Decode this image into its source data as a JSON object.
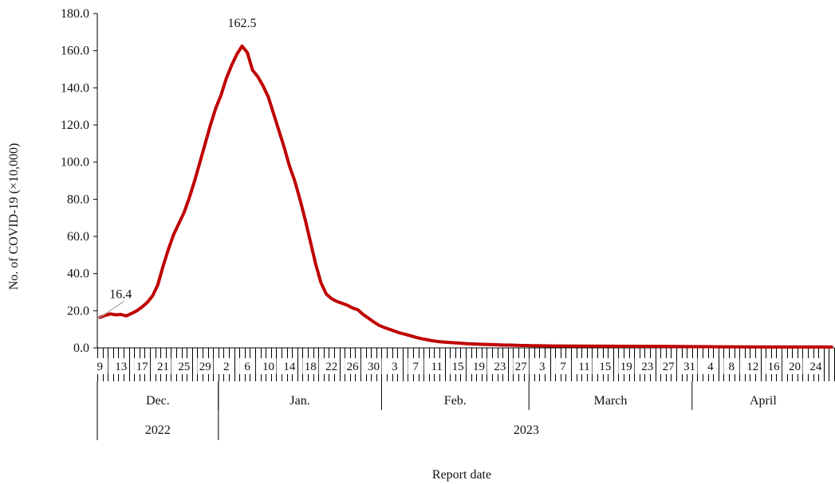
{
  "chart_data": {
    "type": "line",
    "title": "",
    "xlabel": "Report date",
    "ylabel": "No. of COVID-19 (×10,000)",
    "ylim": [
      0,
      180
    ],
    "y_ticks": [
      "0.0",
      "20.0",
      "40.0",
      "60.0",
      "80.0",
      "100.0",
      "120.0",
      "140.0",
      "160.0",
      "180.0"
    ],
    "x_start": "2022-12-09",
    "x_end": "2023-04-27",
    "grid": false,
    "legend": "none",
    "series": [
      {
        "color": "#c00000",
        "points": [
          [
            "2022-12-09",
            16.4
          ],
          [
            "2022-12-10",
            17.5
          ],
          [
            "2022-12-11",
            18.3
          ],
          [
            "2022-12-12",
            17.8
          ],
          [
            "2022-12-13",
            18.0
          ],
          [
            "2022-12-14",
            17.2
          ],
          [
            "2022-12-15",
            18.5
          ],
          [
            "2022-12-16",
            20.0
          ],
          [
            "2022-12-17",
            22.0
          ],
          [
            "2022-12-18",
            24.5
          ],
          [
            "2022-12-19",
            28.0
          ],
          [
            "2022-12-20",
            34.0
          ],
          [
            "2022-12-21",
            44.0
          ],
          [
            "2022-12-22",
            53.0
          ],
          [
            "2022-12-23",
            61.0
          ],
          [
            "2022-12-24",
            67.0
          ],
          [
            "2022-12-25",
            73.0
          ],
          [
            "2022-12-26",
            81.0
          ],
          [
            "2022-12-27",
            90.0
          ],
          [
            "2022-12-28",
            100.0
          ],
          [
            "2022-12-29",
            110.0
          ],
          [
            "2022-12-30",
            120.0
          ],
          [
            "2022-12-31",
            129.0
          ],
          [
            "2023-01-01",
            136.0
          ],
          [
            "2023-01-02",
            145.0
          ],
          [
            "2023-01-03",
            152.0
          ],
          [
            "2023-01-04",
            158.0
          ],
          [
            "2023-01-05",
            162.5
          ],
          [
            "2023-01-06",
            159.0
          ],
          [
            "2023-01-07",
            149.5
          ],
          [
            "2023-01-08",
            146.0
          ],
          [
            "2023-01-09",
            141.0
          ],
          [
            "2023-01-10",
            135.0
          ],
          [
            "2023-01-11",
            126.0
          ],
          [
            "2023-01-12",
            117.0
          ],
          [
            "2023-01-13",
            108.0
          ],
          [
            "2023-01-14",
            98.0
          ],
          [
            "2023-01-15",
            90.0
          ],
          [
            "2023-01-16",
            80.0
          ],
          [
            "2023-01-17",
            69.0
          ],
          [
            "2023-01-18",
            57.0
          ],
          [
            "2023-01-19",
            45.0
          ],
          [
            "2023-01-20",
            35.0
          ],
          [
            "2023-01-21",
            29.0
          ],
          [
            "2023-01-22",
            26.5
          ],
          [
            "2023-01-23",
            25.0
          ],
          [
            "2023-01-24",
            24.0
          ],
          [
            "2023-01-25",
            23.0
          ],
          [
            "2023-01-26",
            21.5
          ],
          [
            "2023-01-27",
            20.5
          ],
          [
            "2023-01-28",
            18.0
          ],
          [
            "2023-01-29",
            16.0
          ],
          [
            "2023-01-30",
            14.0
          ],
          [
            "2023-01-31",
            12.2
          ],
          [
            "2023-02-01",
            11.0
          ],
          [
            "2023-02-02",
            10.0
          ],
          [
            "2023-02-03",
            9.0
          ],
          [
            "2023-02-04",
            8.0
          ],
          [
            "2023-02-05",
            7.3
          ],
          [
            "2023-02-06",
            6.5
          ],
          [
            "2023-02-07",
            5.7
          ],
          [
            "2023-02-08",
            5.0
          ],
          [
            "2023-02-09",
            4.5
          ],
          [
            "2023-02-10",
            3.9
          ],
          [
            "2023-02-11",
            3.5
          ],
          [
            "2023-02-12",
            3.2
          ],
          [
            "2023-02-13",
            3.0
          ],
          [
            "2023-02-14",
            2.8
          ],
          [
            "2023-02-15",
            2.6
          ],
          [
            "2023-02-16",
            2.4
          ],
          [
            "2023-02-17",
            2.2
          ],
          [
            "2023-02-18",
            2.1
          ],
          [
            "2023-02-19",
            2.0
          ],
          [
            "2023-02-20",
            1.9
          ],
          [
            "2023-02-21",
            1.8
          ],
          [
            "2023-02-22",
            1.7
          ],
          [
            "2023-02-23",
            1.6
          ],
          [
            "2023-02-24",
            1.5
          ],
          [
            "2023-02-25",
            1.5
          ],
          [
            "2023-02-26",
            1.4
          ],
          [
            "2023-02-27",
            1.3
          ],
          [
            "2023-02-28",
            1.3
          ],
          [
            "2023-03-01",
            1.2
          ],
          [
            "2023-03-03",
            1.1
          ],
          [
            "2023-03-05",
            1.0
          ],
          [
            "2023-03-10",
            0.95
          ],
          [
            "2023-03-15",
            0.9
          ],
          [
            "2023-03-20",
            0.85
          ],
          [
            "2023-03-25",
            0.8
          ],
          [
            "2023-03-31",
            0.7
          ],
          [
            "2023-04-05",
            0.6
          ],
          [
            "2023-04-10",
            0.55
          ],
          [
            "2023-04-15",
            0.5
          ],
          [
            "2023-04-20",
            0.5
          ],
          [
            "2023-04-27",
            0.5
          ]
        ]
      }
    ],
    "annotations": [
      {
        "text": "16.4",
        "date": "2022-12-09",
        "value": 16.4
      },
      {
        "text": "162.5",
        "date": "2023-01-05",
        "value": 162.5
      }
    ],
    "day_tick_labels": [
      {
        "date": "2022-12-09",
        "label": "9"
      },
      {
        "date": "2022-12-13",
        "label": "13"
      },
      {
        "date": "2022-12-17",
        "label": "17"
      },
      {
        "date": "2022-12-21",
        "label": "21"
      },
      {
        "date": "2022-12-25",
        "label": "25"
      },
      {
        "date": "2022-12-29",
        "label": "29"
      },
      {
        "date": "2023-01-02",
        "label": "2"
      },
      {
        "date": "2023-01-06",
        "label": "6"
      },
      {
        "date": "2023-01-10",
        "label": "10"
      },
      {
        "date": "2023-01-14",
        "label": "14"
      },
      {
        "date": "2023-01-18",
        "label": "18"
      },
      {
        "date": "2023-01-22",
        "label": "22"
      },
      {
        "date": "2023-01-26",
        "label": "26"
      },
      {
        "date": "2023-01-30",
        "label": "30"
      },
      {
        "date": "2023-02-03",
        "label": "3"
      },
      {
        "date": "2023-02-07",
        "label": "7"
      },
      {
        "date": "2023-02-11",
        "label": "11"
      },
      {
        "date": "2023-02-15",
        "label": "15"
      },
      {
        "date": "2023-02-19",
        "label": "19"
      },
      {
        "date": "2023-02-23",
        "label": "23"
      },
      {
        "date": "2023-02-27",
        "label": "27"
      },
      {
        "date": "2023-03-03",
        "label": "3"
      },
      {
        "date": "2023-03-07",
        "label": "7"
      },
      {
        "date": "2023-03-11",
        "label": "11"
      },
      {
        "date": "2023-03-15",
        "label": "15"
      },
      {
        "date": "2023-03-19",
        "label": "19"
      },
      {
        "date": "2023-03-23",
        "label": "23"
      },
      {
        "date": "2023-03-27",
        "label": "27"
      },
      {
        "date": "2023-03-31",
        "label": "31"
      },
      {
        "date": "2023-04-04",
        "label": "4"
      },
      {
        "date": "2023-04-08",
        "label": "8"
      },
      {
        "date": "2023-04-12",
        "label": "12"
      },
      {
        "date": "2023-04-16",
        "label": "16"
      },
      {
        "date": "2023-04-20",
        "label": "20"
      },
      {
        "date": "2023-04-24",
        "label": "24"
      }
    ],
    "month_groups": [
      {
        "label": "Dec.",
        "start": "2022-12-09",
        "end": "2022-12-31"
      },
      {
        "label": "Jan.",
        "start": "2023-01-01",
        "end": "2023-01-31"
      },
      {
        "label": "Feb.",
        "start": "2023-02-01",
        "end": "2023-02-28"
      },
      {
        "label": "March",
        "start": "2023-03-01",
        "end": "2023-03-31"
      },
      {
        "label": "April",
        "start": "2023-04-01",
        "end": "2023-04-27"
      }
    ],
    "year_groups": [
      {
        "label": "2022",
        "start": "2022-12-09",
        "end": "2022-12-31"
      },
      {
        "label": "2023",
        "start": "2023-01-01",
        "end": "2023-04-27"
      }
    ]
  }
}
